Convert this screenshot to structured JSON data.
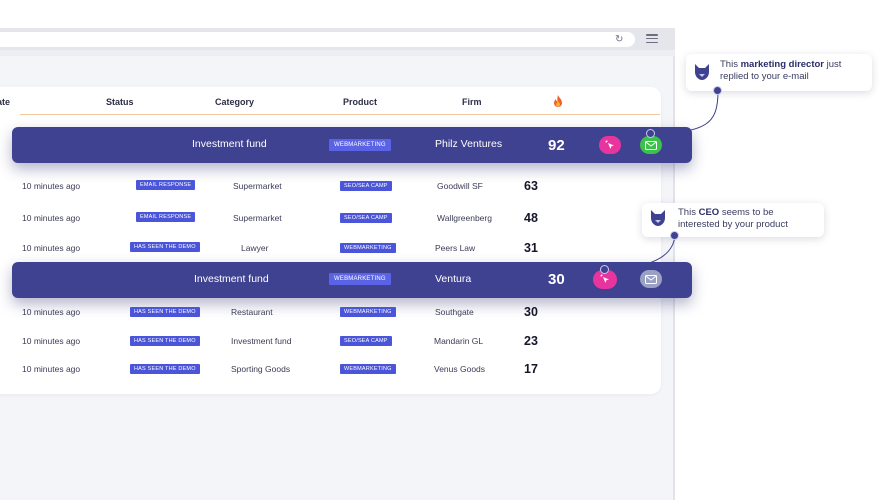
{
  "table": {
    "columns": [
      "ate",
      "Status",
      "Category",
      "Product",
      "Firm"
    ],
    "rows": [
      {
        "time": "10 minutes ago",
        "status": "EMAIL RESPONSE",
        "category": "Supermarket",
        "product": "SEO/SEA CAMP",
        "firm": "Goodwill SF",
        "score": "63"
      },
      {
        "time": "10 minutes ago",
        "status": "EMAIL RESPONSE",
        "category": "Supermarket",
        "product": "SEO/SEA CAMP",
        "firm": "Wallgreenberg",
        "score": "48"
      },
      {
        "time": "10 minutes ago",
        "status": "HAS SEEN THE DEMO",
        "category": "Lawyer",
        "product": "WEBMARKETING",
        "firm": "Peers Law",
        "score": "31"
      },
      {
        "time": "10 minutes ago",
        "status": "HAS SEEN THE DEMO",
        "category": "Restaurant",
        "product": "WEBMARKETING",
        "firm": "Southgate",
        "score": "30"
      },
      {
        "time": "10 minutes ago",
        "status": "HAS SEEN THE DEMO",
        "category": "Investment fund",
        "product": "SEO/SEA CAMP",
        "firm": "Mandarin GL",
        "score": "23"
      },
      {
        "time": "10 minutes ago",
        "status": "HAS SEEN THE DEMO",
        "category": "Sporting Goods",
        "product": "WEBMARKETING",
        "firm": "Venus Goods",
        "score": "17"
      }
    ],
    "highlighted": [
      {
        "category": "Investment fund",
        "product": "WEBMARKETING",
        "firm": "Philz Ventures",
        "score": "92"
      },
      {
        "category": "Investment fund",
        "product": "WEBMARKETING",
        "firm": "Ventura",
        "score": "30"
      }
    ]
  },
  "tooltips": {
    "first": {
      "pre": "This ",
      "bold": "marketing director",
      "post": " just",
      "line2": "replied to your e-mail"
    },
    "second": {
      "pre": "This ",
      "bold": "CEO",
      "post": " seems to be",
      "line2": "interested by your product"
    }
  },
  "icons": {
    "reload": "reload-icon",
    "menu": "hamburger-menu-icon",
    "fire": "fire-icon",
    "click": "cursor-click-icon",
    "mail": "mail-icon",
    "avatar": "fox-avatar-icon"
  },
  "colors": {
    "highlight_row": "#3f4290",
    "badge": "#4b55d9",
    "pink": "#e8359e",
    "green": "#3cc14a",
    "grey": "#9ba0c5"
  }
}
